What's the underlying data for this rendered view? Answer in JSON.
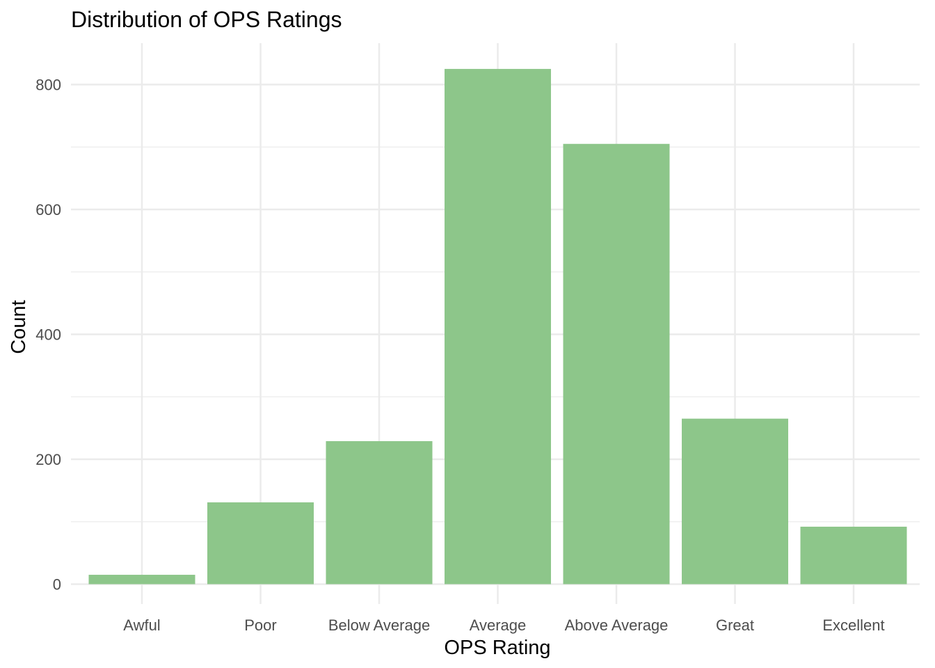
{
  "chart_data": {
    "type": "bar",
    "title": "Distribution of OPS Ratings",
    "xlabel": "OPS Rating",
    "ylabel": "Count",
    "categories": [
      "Awful",
      "Poor",
      "Below Average",
      "Average",
      "Above Average",
      "Great",
      "Excellent"
    ],
    "values": [
      15,
      131,
      229,
      825,
      705,
      265,
      92
    ],
    "ylim": [
      0,
      860
    ],
    "yticks": [
      0,
      200,
      400,
      600,
      800
    ],
    "ytick_labels": [
      "0",
      "200",
      "400",
      "600",
      "800"
    ],
    "grid": true,
    "legend": "none",
    "bar_color": "#8dc68a"
  }
}
